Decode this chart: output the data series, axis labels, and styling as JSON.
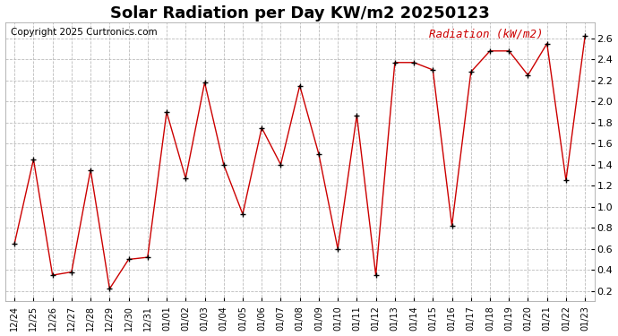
{
  "title": "Solar Radiation per Day KW/m2 20250123",
  "copyright": "Copyright 2025 Curtronics.com",
  "legend_label": "Radiation (kW/m2)",
  "dates": [
    "12/24",
    "12/25",
    "12/26",
    "12/27",
    "12/28",
    "12/29",
    "12/30",
    "12/31",
    "01/01",
    "01/02",
    "01/03",
    "01/04",
    "01/05",
    "01/06",
    "01/07",
    "01/08",
    "01/09",
    "01/10",
    "01/11",
    "01/12",
    "01/13",
    "01/14",
    "01/15",
    "01/16",
    "01/17",
    "01/18",
    "01/19",
    "01/20",
    "01/21",
    "01/22",
    "01/23"
  ],
  "values": [
    0.65,
    1.45,
    0.35,
    0.38,
    1.35,
    0.22,
    0.5,
    0.52,
    1.9,
    1.27,
    2.18,
    1.4,
    0.93,
    1.75,
    1.4,
    2.15,
    1.5,
    0.6,
    1.87,
    0.35,
    2.37,
    2.37,
    2.3,
    0.82,
    2.28,
    2.48,
    2.48,
    2.25,
    2.55,
    1.25,
    2.62
  ],
  "line_color": "#cc0000",
  "marker": "+",
  "marker_color": "#000000",
  "ylim": [
    0.1,
    2.75
  ],
  "yticks": [
    0.2,
    0.4,
    0.6,
    0.8,
    1.0,
    1.2,
    1.4,
    1.6,
    1.8,
    2.0,
    2.2,
    2.4,
    2.6
  ],
  "background_color": "#ffffff",
  "grid_color": "#bbbbbb",
  "title_fontsize": 13,
  "copyright_fontsize": 7.5,
  "legend_fontsize": 9,
  "tick_fontsize": 7,
  "ytick_fontsize": 8
}
